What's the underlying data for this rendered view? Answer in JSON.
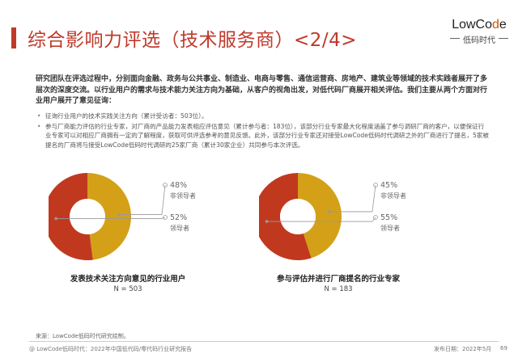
{
  "header": {
    "title": "综合影响力评选（技术服务商）<2/4>",
    "logo_pre": "LowCo",
    "logo_accent": "d",
    "logo_post": "e",
    "logo_sub": "低码时代"
  },
  "body": {
    "intro": "研究团队在评选过程中，分别面向金融、政务与公共事业、制造业、电商与零售、通信运营商、房地产、建筑业等领域的技术实践者展开了多层次的深度交流。以行业用户的需求与技术能力关注方向为基础，从客户的视角出发，对低代码厂商展开相关评估。我们主要从两个方面对行业用户展开了意见征询：",
    "bullets": [
      "征询行业用户的技术实践关注方向（累计受访者：503位）。",
      "参与厂商能力评估的行业专家，对厂商的产品能力发表相应评估意见（累计参与者：183位），该部分行业专家最大化程度涵盖了参与调研厂商的客户，以便保证行业专家可以对相应厂商拥有一定的了解程度，获取可供评选参考的意见反馈。此外，该部分行业专家还对接受LowCode低码时代调研之外的厂商进行了提名，5家被提名的厂商将与接受LowCode低码时代调研的25家厂商（累计30家企业）共同参与本次评选。"
    ]
  },
  "colors": {
    "accent": "#c0392b",
    "gold": "#d4a017",
    "dark_red": "#c0391f"
  },
  "chart_data": [
    {
      "type": "pie",
      "title": "发表技术关注方向意见的行业用户",
      "n_label": "N = 503",
      "slices": [
        {
          "label": "非领导者",
          "value": 48,
          "pct_label": "48%"
        },
        {
          "label": "领导者",
          "value": 52,
          "pct_label": "52%"
        }
      ]
    },
    {
      "type": "pie",
      "title": "参与评估并进行厂商提名的行业专家",
      "n_label": "N = 183",
      "slices": [
        {
          "label": "非领导者",
          "value": 45,
          "pct_label": "45%"
        },
        {
          "label": "领导者",
          "value": 55,
          "pct_label": "55%"
        }
      ]
    }
  ],
  "source": "来源：LowCode低码时代研究绘制。",
  "footer": {
    "left": "@ LowCode低码时代：2022年中国低代码/零代码行业研究报告",
    "right": "发布日期：2022年5月",
    "page": "69"
  }
}
